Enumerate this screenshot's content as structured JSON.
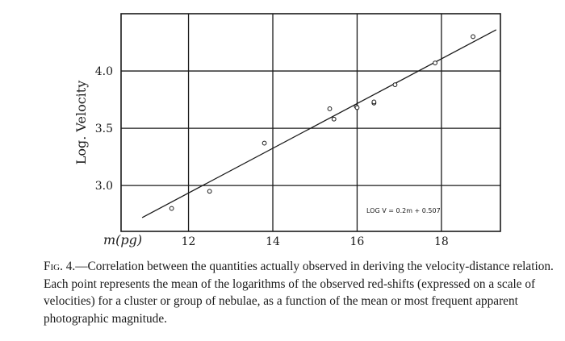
{
  "chart_data": {
    "type": "scatter",
    "xlabel": "m(pg)",
    "ylabel": "Log. Velocity",
    "xlim": [
      10.4,
      19.4
    ],
    "ylim": [
      2.6,
      4.5
    ],
    "xticks": [
      12,
      14,
      16,
      18
    ],
    "yticks": [
      3.0,
      3.5,
      4.0
    ],
    "xtick_labels": [
      "12",
      "14",
      "16",
      "18"
    ],
    "ytick_labels": [
      "3.0",
      "3.5",
      "4.0"
    ],
    "grid": true,
    "points": [
      {
        "x": 11.6,
        "y": 2.8
      },
      {
        "x": 12.5,
        "y": 2.95
      },
      {
        "x": 13.8,
        "y": 3.37
      },
      {
        "x": 15.35,
        "y": 3.67
      },
      {
        "x": 15.45,
        "y": 3.58
      },
      {
        "x": 15.98,
        "y": 3.69
      },
      {
        "x": 16.0,
        "y": 3.68
      },
      {
        "x": 16.4,
        "y": 3.72
      },
      {
        "x": 16.4,
        "y": 3.73
      },
      {
        "x": 16.9,
        "y": 3.88
      },
      {
        "x": 17.85,
        "y": 4.07
      },
      {
        "x": 18.75,
        "y": 4.3
      }
    ],
    "fit_line": {
      "x": [
        10.9,
        19.3
      ],
      "y": [
        2.72,
        4.36
      ]
    },
    "annotation": "LOG V = 0.2m + 0.507"
  },
  "caption": {
    "figure_label": "Fig. 4.",
    "text": "—Correlation between the quantities actually observed in deriving the velocity-distance relation. Each point represents the mean of the logarithms of the observed red-shifts (expressed on a scale of velocities) for a cluster or group of nebulae, as a function of the mean or most frequent apparent photographic magnitude."
  },
  "colors": {
    "ink": "#1a1a1a",
    "background": "#ffffff"
  }
}
